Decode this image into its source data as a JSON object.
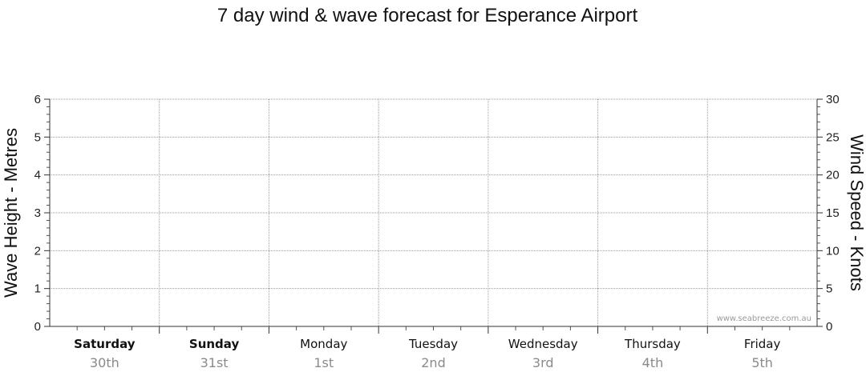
{
  "chart_data": {
    "type": "line",
    "title": "7 day wind & wave forecast for Esperance Airport",
    "ylabel_left": "Wave Height - Metres",
    "ylabel_right": "Wind Speed - Knots",
    "ylim_left": [
      0,
      6
    ],
    "ylim_right": [
      0,
      30
    ],
    "yticks_left": [
      "0",
      "1",
      "2",
      "3",
      "4",
      "5",
      "6"
    ],
    "yticks_right": [
      "0",
      "5",
      "10",
      "15",
      "20",
      "25",
      "30"
    ],
    "grid": true,
    "days": [
      {
        "name": "Saturday",
        "date": "30th",
        "bold": true
      },
      {
        "name": "Sunday",
        "date": "31st",
        "bold": true
      },
      {
        "name": "Monday",
        "date": "1st",
        "bold": false
      },
      {
        "name": "Tuesday",
        "date": "2nd",
        "bold": false
      },
      {
        "name": "Wednesday",
        "date": "3rd",
        "bold": false
      },
      {
        "name": "Thursday",
        "date": "4th",
        "bold": false
      },
      {
        "name": "Friday",
        "date": "5th",
        "bold": false
      }
    ],
    "series": [],
    "watermark": "www.seabreeze.com.au"
  }
}
